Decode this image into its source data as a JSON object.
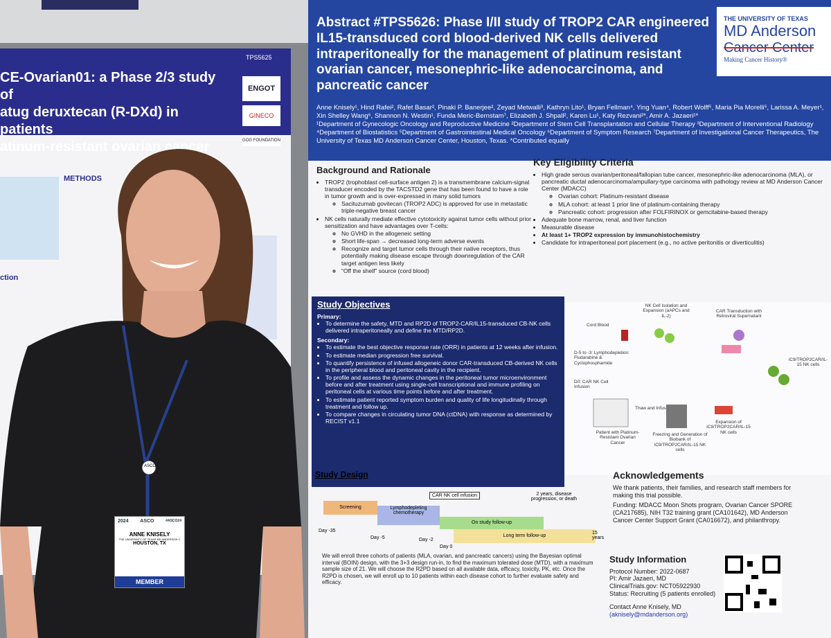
{
  "left_poster": {
    "title": [
      "CE-Ovarian01: a Phase 2/3 study of",
      "atug deruxtecan (R-DXd) in patients",
      "atinum-resistant ovarian cancer"
    ],
    "code": "TPS5625",
    "logos": [
      "ENGOT",
      "GINECO",
      "GOG FOUNDATION"
    ],
    "sections": [
      "METHODS",
      "ction"
    ]
  },
  "right_poster": {
    "title": "Abstract #TPS5626: Phase I/II study of TROP2 CAR engineered IL15-transduced cord blood-derived NK cells delivered intraperitoneally for the management of platinum resistant ovarian cancer, mesonephric-like adenocarcinoma, and pancreatic cancer",
    "logo": [
      "THE UNIVERSITY OF TEXAS",
      "MD Anderson",
      "Cancer Center",
      "Making Cancer History®"
    ],
    "authors": "Anne Knisely¹, Hind Rafei², Rafet Basar², Pinaki P. Banerjee², Zeyad Metwalli³, Kathryn Lito¹, Bryan Fellman⁴, Ying Yuan⁴, Robert Wolff⁵, Maria Pia Morelli⁵, Larissa A. Meyer¹, Xin Shelley Wang⁶, Shannon N. Westin¹, Funda Meric-Bernstam⁷, Elizabeth J. Shpall², Karen Lu¹, Katy Rezvani²*, Amir A. Jazaeri¹*",
    "affiliations": "¹Department of Gynecologic Oncology and Reproductive Medicine ²Department of Stem Cell Transplantation and Cellular Therapy ³Department of Interventional Radiology ⁴Department of Biostatistics ⁵Department of Gastrointestinal Medical Oncology ⁶Department of Symptom Research ⁷Department of Investigational Cancer Therapeutics, The University of Texas MD Anderson Cancer Center, Houston, Texas. *Contributed equally",
    "background": {
      "heading": "Background and Rationale",
      "items": [
        "TROP2 (trophoblast cell-surface antigen 2) is a transmembrane calcium-signal transducer encoded by the TACSTD2 gene that has been found to have a role in tumor growth and is over-expressed in many solid tumors",
        "Sacituzumab govitecan (TROP2 ADC) is approved for use in metastatic triple-negative breast cancer",
        "NK cells naturally mediate effective cytotoxicity against tumor cells without prior sensitization and have advantages over T-cells:",
        "No GVHD in the allogeneic setting",
        "Short life-span → decreased long-term adverse events",
        "Recognize and target tumor cells through their native receptors, thus potentially making disease escape through downregulation of the CAR target antigen less likely",
        "“Off the shelf” source (cord blood)"
      ]
    },
    "eligibility": {
      "heading": "Key Eligibility Criteria",
      "items": [
        "High grade serous ovarian/peritoneal/fallopian tube cancer, mesonephric-like adenocarcinoma (MLA), or pancreatic ductal adenocarcinoma/ampullary-type carcinoma with pathology review at MD Anderson Cancer Center (MDACC)",
        "Ovarian cohort: Platinum-resistant disease",
        "MLA cohort: at least 1 prior line of platinum-containing therapy",
        "Pancreatic cohort: progression after FOLFIRINOX or gemcitabine-based therapy",
        "Adequate bone marrow, renal, and liver function",
        "Measurable disease",
        "At least 1+ TROP2 expression by immunohistochemistry",
        "Candidate for intraperitoneal port placement (e.g., no active peritonitis or diverticulitis)"
      ]
    },
    "objectives": {
      "heading": "Study Objectives",
      "primary_label": "Primary:",
      "primary": "To determine the safety, MTD and RP2D of TROP2-CAR/IL15-transduced CB-NK cells delivered intraperitoneally and define the MTD/RP2D.",
      "secondary_label": "Secondary:",
      "secondary": [
        "To estimate the best objective response rate (ORR) in patients at 12 weeks after infusion.",
        "To estimate median progression free survival.",
        "To quantify persistence of infused allogeneic donor CAR-transduced CB-derived NK cells in the peripheral blood and peritoneal cavity in the recipient.",
        "To profile and assess the dynamic changes in the peritoneal tumor microenvironment before and after treatment using single-cell transcriptional and immune profiling on peritoneal cells at various time points before and after treatment.",
        "To estimate patient reported symptom burden and quality of life longitudinally through treatment and follow up.",
        "To compare changes in circulating tumor DNA (ctDNA) with response as determined by RECIST v1.1"
      ]
    },
    "diagram": {
      "labels": [
        "Cord Blood",
        "NK Cell Isolation and Expansion (aAPCs and IL-2)",
        "CAR Transduction with Retroviral Supernatant",
        "iC9/TROP2CAR/IL-15 NK cells",
        "D-5 to -3: Lymphodepletion: Fludarabine & Cyclophosphamide",
        "D0: CAR NK Cell Infusion",
        "Thaw and Infuse",
        "Expansion of iC9/TROP2CAR/IL-15 NK cells",
        "Freezing and Generation of Biobank of iC9/TROP2CAR/IL-15 NK cells",
        "Patient with Platinum-Resistant Ovarian Cancer"
      ]
    },
    "design": {
      "heading": "Study Design",
      "phases": [
        "Screening",
        "Lymphodepleting chemotherapy",
        "On study follow-up",
        "Long term follow-up"
      ],
      "infusion": "CAR NK cell infusion",
      "end_note": "2 years, disease progression, or death",
      "days": [
        "Day -35",
        "Day -5",
        "Day -2",
        "Day 0",
        "15 years"
      ],
      "text": "We will enroll three cohorts of patients (MLA, ovarian, and pancreatic cancers) using the Bayesian optimal interval (BOIN) design, with the 3+3 design run-in, to find the maximum tolerated dose (MTD), with a maximum sample size of 21. We will choose the R2PD based on all available data, efficacy, toxicity, PK, etc. Once the R2PD is chosen, we will enroll up to 10 patients within each disease cohort to further evaluate safety and efficacy."
    },
    "acknowledgements": {
      "heading": "Acknowledgements",
      "text": "We thank patients, their families, and research staff members for making this trial possible.",
      "funding": "Funding: MDACC Moon Shots program, Ovarian Cancer SPORE (CA217685), NIH T32 training grant (CA101642), MD Anderson Cancer Center Support Grant (CA016672), and philanthropy."
    },
    "study_info": {
      "heading": "Study Information",
      "lines": [
        "Protocol Number: 2022-0687",
        "PI: Amir Jazaeri, MD",
        "ClinicalTrials.gov: NCT05922930",
        "Status: Recruiting (5 patients enrolled)"
      ]
    },
    "contact": [
      "Contact Anne Knisely, MD",
      "(aknisely@mdanderson.org)"
    ]
  },
  "badge": {
    "event": "ASCO",
    "year": "2024",
    "hashtag": "#ASCO24",
    "name": "ANNE KNISELY",
    "org": "THE UNIVERSITY OF TEXAS MD ANDERSON C",
    "city": "HOUSTON, TX",
    "type": "MEMBER",
    "lanyard": "ASCO"
  }
}
